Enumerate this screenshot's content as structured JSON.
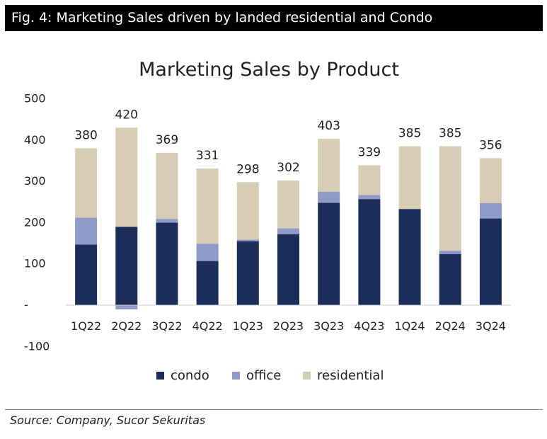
{
  "figure": {
    "header": "Fig. 4: Marketing Sales driven by landed residential and Condo",
    "source": "Source: Company, Sucor Sekuritas"
  },
  "chart_data": {
    "type": "bar",
    "stacked": true,
    "title": "Marketing Sales by Product",
    "categories": [
      "1Q22",
      "2Q22",
      "3Q22",
      "4Q22",
      "1Q23",
      "2Q23",
      "3Q23",
      "4Q23",
      "1Q24",
      "2Q24",
      "3Q24"
    ],
    "series": [
      {
        "name": "condo",
        "color": "#1c2d5a",
        "values": [
          147,
          190,
          200,
          107,
          155,
          172,
          248,
          257,
          233,
          124,
          210
        ]
      },
      {
        "name": "office",
        "color": "#8e9bc9",
        "values": [
          65,
          -10,
          9,
          42,
          4,
          14,
          27,
          10,
          0,
          8,
          37
        ]
      },
      {
        "name": "residential",
        "color": "#d6cdb4",
        "values": [
          168,
          240,
          160,
          182,
          139,
          116,
          128,
          72,
          152,
          253,
          109
        ]
      }
    ],
    "totals": [
      "380",
      "420",
      "369",
      "331",
      "298",
      "302",
      "403",
      "339",
      "385",
      "385",
      "356"
    ],
    "yticks": [
      500,
      400,
      300,
      200,
      100,
      0,
      -100
    ],
    "ytick_labels": [
      "500",
      "400",
      "300",
      "200",
      "100",
      "-",
      "-100"
    ],
    "ylim": [
      -100,
      500
    ],
    "legend": "bottom"
  }
}
